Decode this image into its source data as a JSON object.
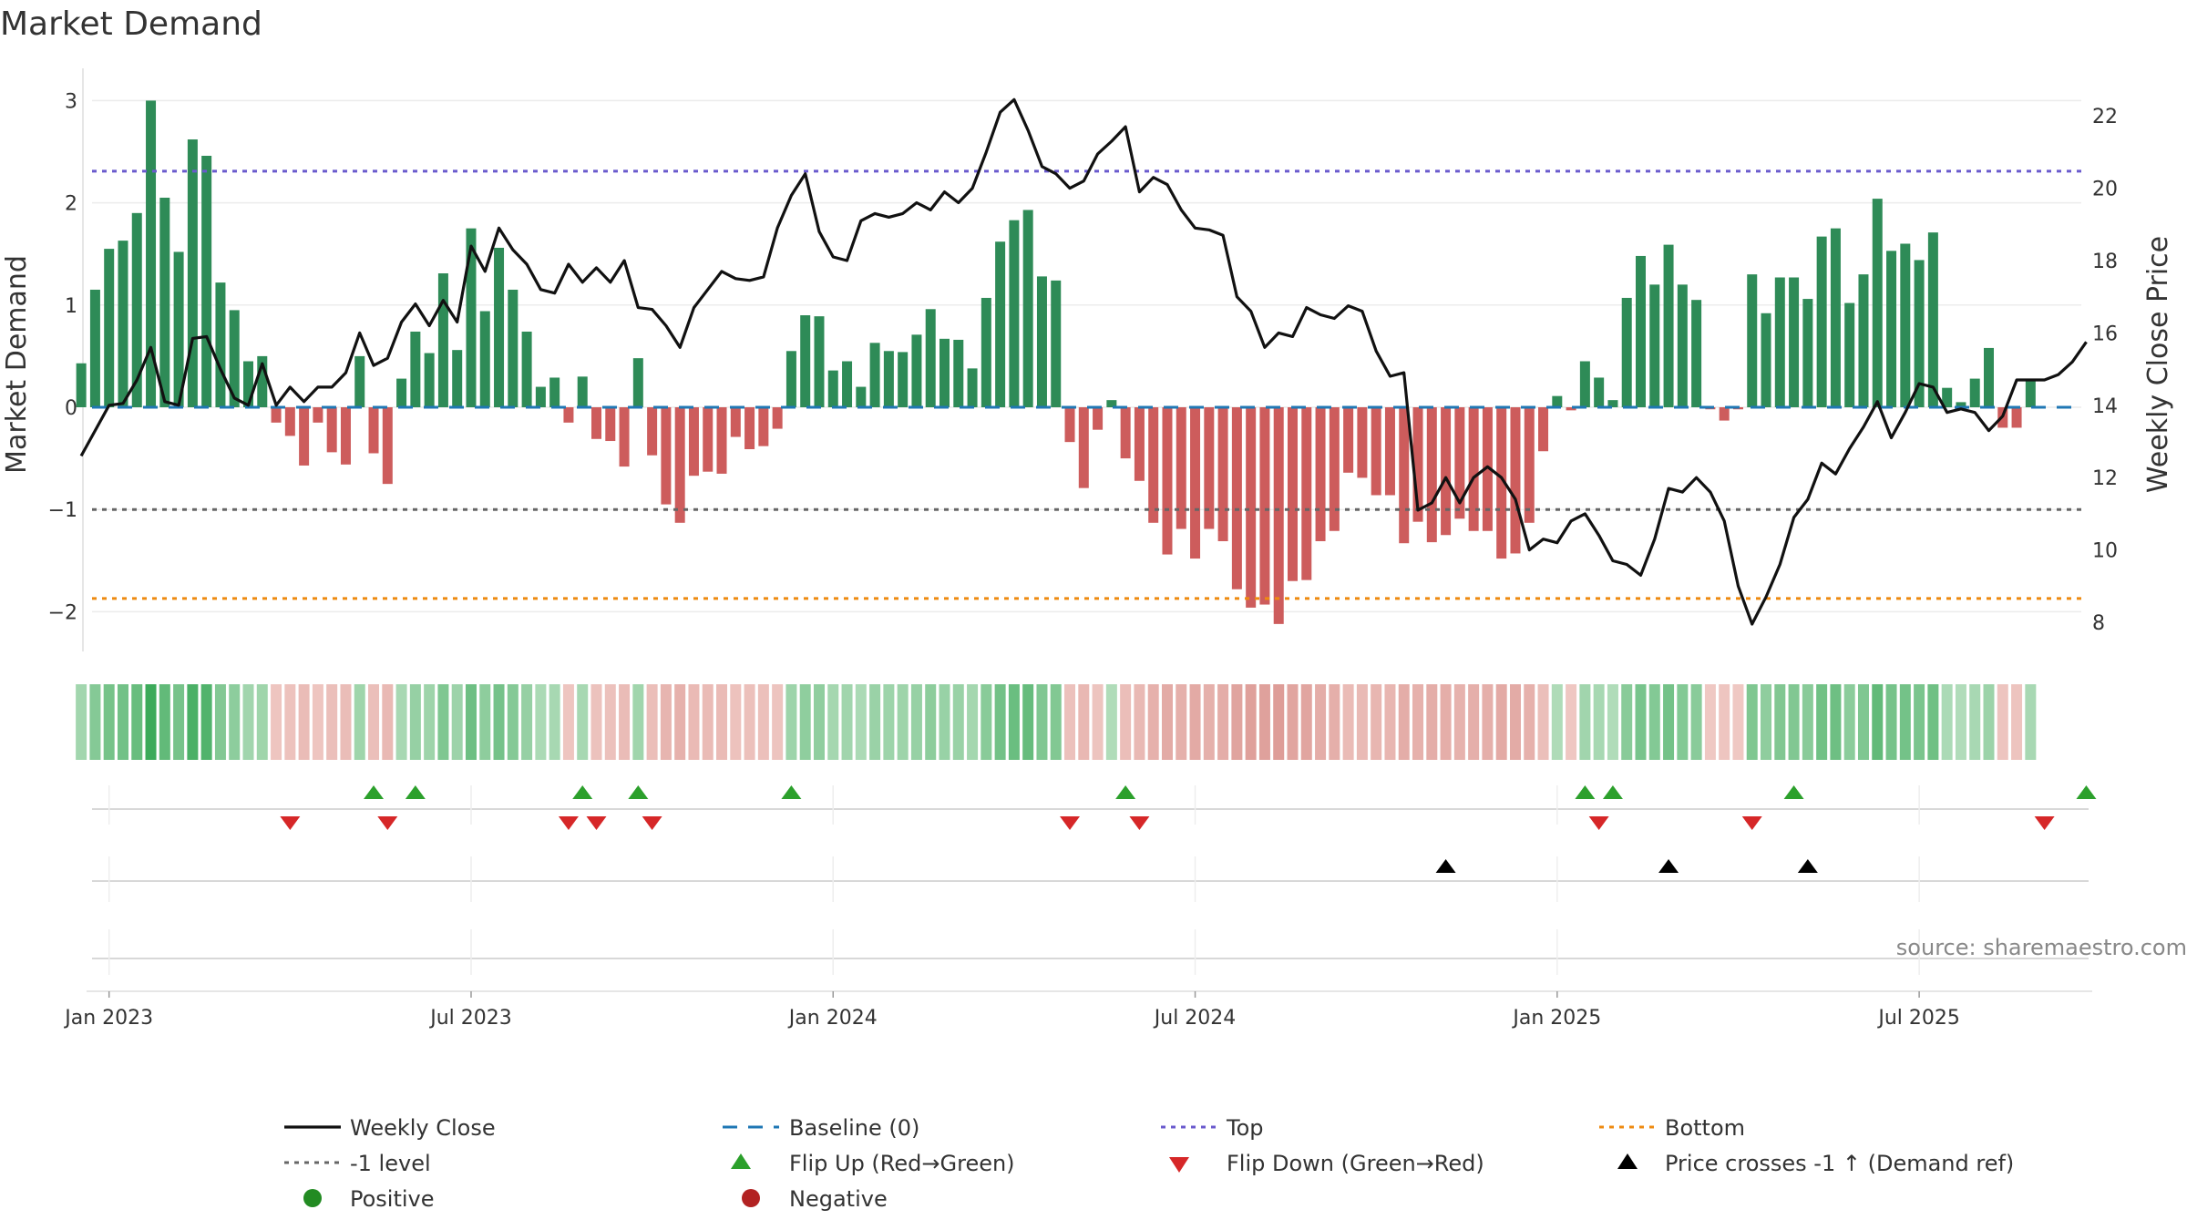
{
  "chart_data": {
    "type": "bar+line",
    "title": "Market Demand",
    "ylabel_left": "Market Demand",
    "ylabel_right": "Weekly Close Price",
    "ylim_left": [
      -2.4,
      3.2
    ],
    "ylim_right": [
      6.5,
      22.8
    ],
    "left_ticks": [
      3,
      2,
      1,
      0,
      -1,
      -2
    ],
    "left_tick_labels": [
      "3",
      "2",
      "1",
      "0",
      "−1",
      "−2"
    ],
    "right_ticks": [
      22,
      20,
      18,
      16,
      14,
      12,
      10,
      8
    ],
    "right_tick_labels": [
      "22",
      "20",
      "18",
      "16",
      "14",
      "12",
      "10",
      "8"
    ],
    "x_tick_labels": [
      "Jan 2023",
      "Jul 2023",
      "Jan 2024",
      "Jul 2024",
      "Jan 2025",
      "Jul 2025"
    ],
    "x_tick_week_index": [
      0,
      26,
      52,
      78,
      104,
      130
    ],
    "first_week_index": -2,
    "levels": {
      "top": 2.31,
      "minus_one": -1.0,
      "bottom": -1.87,
      "baseline": 0
    },
    "demand": [
      0.43,
      1.15,
      1.55,
      1.63,
      1.9,
      3.0,
      2.05,
      1.52,
      2.62,
      2.46,
      1.22,
      0.95,
      0.45,
      0.5,
      -0.15,
      -0.28,
      -0.57,
      -0.15,
      -0.44,
      -0.56,
      0.5,
      -0.45,
      -0.75,
      0.28,
      0.74,
      0.53,
      1.31,
      0.56,
      1.75,
      0.94,
      1.56,
      1.15,
      0.74,
      0.2,
      0.29,
      -0.15,
      0.3,
      -0.31,
      -0.33,
      -0.58,
      0.48,
      -0.47,
      -0.95,
      -1.13,
      -0.67,
      -0.63,
      -0.65,
      -0.29,
      -0.41,
      -0.38,
      -0.21,
      0.55,
      0.9,
      0.89,
      0.36,
      0.45,
      0.2,
      0.63,
      0.55,
      0.54,
      0.71,
      0.96,
      0.67,
      0.66,
      0.38,
      1.07,
      1.62,
      1.83,
      1.93,
      1.28,
      1.24,
      -0.34,
      -0.79,
      -0.22,
      0.07,
      -0.5,
      -0.72,
      -1.13,
      -1.44,
      -1.19,
      -1.48,
      -1.19,
      -1.31,
      -1.78,
      -1.96,
      -1.93,
      -2.12,
      -1.7,
      -1.69,
      -1.31,
      -1.21,
      -0.64,
      -0.69,
      -0.86,
      -0.86,
      -1.33,
      -1.12,
      -1.32,
      -1.25,
      -1.09,
      -1.21,
      -1.21,
      -1.48,
      -1.43,
      -1.13,
      -0.43,
      0.11,
      -0.03,
      0.45,
      0.29,
      0.07,
      1.07,
      1.48,
      1.2,
      1.59,
      1.2,
      1.05,
      -0.02,
      -0.13,
      -0.02,
      1.3,
      0.92,
      1.27,
      1.27,
      1.06,
      1.67,
      1.75,
      1.02,
      1.3,
      2.04,
      1.53,
      1.6,
      1.44,
      1.71,
      0.19,
      0.05,
      0.28,
      0.58,
      -0.2,
      -0.2,
      0.27
    ],
    "close": [
      12.6,
      13.3,
      14.0,
      14.05,
      14.7,
      15.6,
      14.1,
      14.0,
      15.85,
      15.9,
      15.0,
      14.2,
      14.0,
      15.15,
      14.0,
      14.5,
      14.1,
      14.5,
      14.5,
      14.9,
      16.0,
      15.1,
      15.3,
      16.3,
      16.8,
      16.2,
      16.9,
      16.3,
      18.4,
      17.7,
      18.9,
      18.3,
      17.9,
      17.2,
      17.1,
      17.9,
      17.4,
      17.8,
      17.4,
      18.0,
      16.7,
      16.65,
      16.2,
      15.6,
      16.7,
      17.2,
      17.7,
      17.5,
      17.45,
      17.55,
      18.9,
      19.8,
      20.4,
      18.8,
      18.1,
      18.0,
      19.1,
      19.3,
      19.2,
      19.3,
      19.6,
      19.4,
      19.9,
      19.6,
      20.0,
      21.0,
      22.1,
      22.45,
      21.6,
      20.6,
      20.4,
      20.0,
      20.2,
      20.95,
      21.3,
      21.7,
      19.9,
      20.3,
      20.1,
      19.4,
      18.9,
      18.85,
      18.7,
      17.0,
      16.6,
      15.6,
      16.0,
      15.9,
      16.7,
      16.5,
      16.4,
      16.75,
      16.6,
      15.5,
      14.8,
      14.9,
      11.1,
      11.3,
      12.0,
      11.3,
      12.0,
      12.3,
      12.0,
      11.4,
      10.0,
      10.3,
      10.2,
      10.8,
      11.0,
      10.4,
      9.7,
      9.6,
      9.3,
      10.3,
      11.7,
      11.6,
      12.0,
      11.6,
      10.8,
      9.0,
      7.95,
      8.7,
      9.6,
      10.9,
      11.4,
      12.4,
      12.1,
      12.8,
      13.4,
      14.1,
      13.1,
      13.8,
      14.6,
      14.5,
      13.8,
      13.9,
      13.8,
      13.3,
      13.7,
      14.7,
      14.7,
      14.7,
      14.85,
      15.2,
      15.75
    ],
    "flip_up_weeks": [
      19,
      22,
      34,
      38,
      49,
      73,
      106,
      108,
      121,
      142
    ],
    "flip_down_weeks": [
      13,
      20,
      33,
      35,
      39,
      69,
      74,
      107,
      118,
      139
    ],
    "price_cross_weeks": [
      96,
      112,
      122
    ],
    "source_text": "source: sharemaestro.com"
  },
  "colors": {
    "positive_bar": "#2e8b57",
    "negative_bar": "#cd5c5c",
    "close_line": "#111111",
    "top_line": "#6a5acd",
    "bottom_line": "#ee8a10",
    "minus_one_line": "#666666",
    "baseline": "#1f77b4",
    "flip_up": "#2ca02c",
    "flip_down": "#d62728",
    "price_cross": "#000000",
    "positive_dot": "#228b22",
    "negative_dot": "#b22222"
  },
  "legend": {
    "weekly_close": "Weekly Close",
    "baseline": "Baseline (0)",
    "top": "Top",
    "bottom": "Bottom",
    "minus_one": "-1 level",
    "flip_up": "Flip Up (Red→Green)",
    "flip_down": "Flip Down (Green→Red)",
    "price_cross": "Price crosses -1 ↑ (Demand ref)",
    "positive": "Positive",
    "negative": "Negative"
  }
}
